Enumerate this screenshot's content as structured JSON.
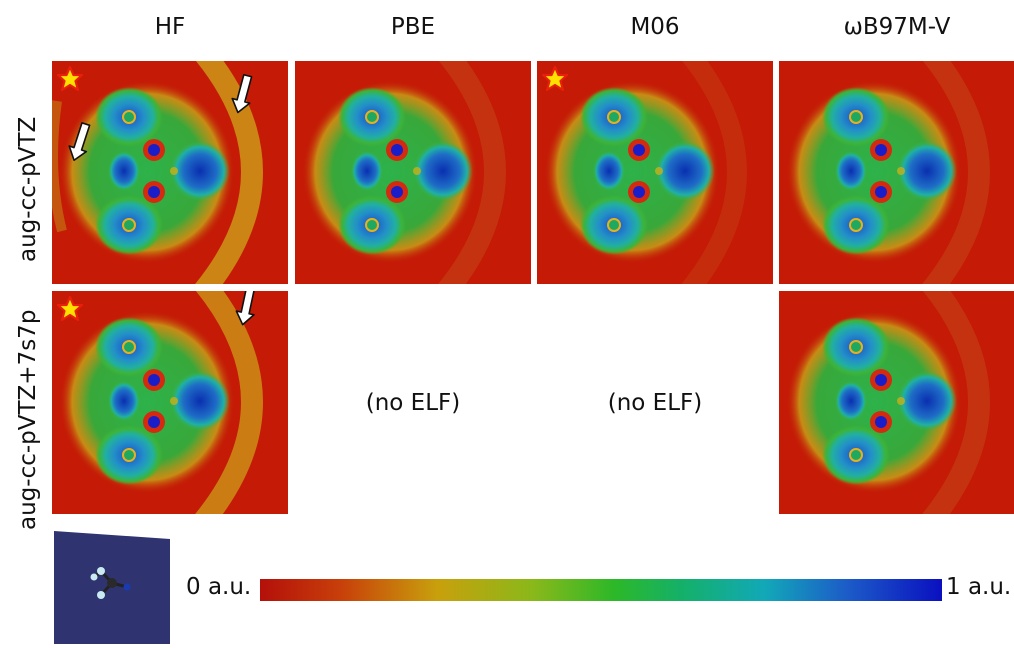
{
  "columns": [
    "HF",
    "PBE",
    "M06",
    "ωB97M-V"
  ],
  "rows": [
    "aug-cc-pVTZ",
    "aug-cc-pVTZ+7s7p"
  ],
  "missing_text": "(no ELF)",
  "colorbar": {
    "min_label": "0 a.u.",
    "max_label": "1 a.u."
  },
  "colors": {
    "background_field": "#c41a06",
    "star": "#ffe100",
    "star_outline": "#e81f0a",
    "molecule_box": "#2f3470"
  },
  "panels": [
    {
      "row": 0,
      "col": 0,
      "state": "image",
      "star": true,
      "yellow_shell": true,
      "arrows": 2
    },
    {
      "row": 0,
      "col": 1,
      "state": "image",
      "star": false,
      "yellow_shell": false,
      "arrows": 0
    },
    {
      "row": 0,
      "col": 2,
      "state": "image",
      "star": true,
      "yellow_shell": false,
      "arrows": 0
    },
    {
      "row": 0,
      "col": 3,
      "state": "image",
      "star": false,
      "yellow_shell": false,
      "arrows": 0
    },
    {
      "row": 1,
      "col": 0,
      "state": "image",
      "star": true,
      "yellow_shell": true,
      "arrows": 1
    },
    {
      "row": 1,
      "col": 1,
      "state": "missing"
    },
    {
      "row": 1,
      "col": 2,
      "state": "missing"
    },
    {
      "row": 1,
      "col": 3,
      "state": "image",
      "star": false,
      "yellow_shell": false,
      "arrows": 0
    }
  ]
}
